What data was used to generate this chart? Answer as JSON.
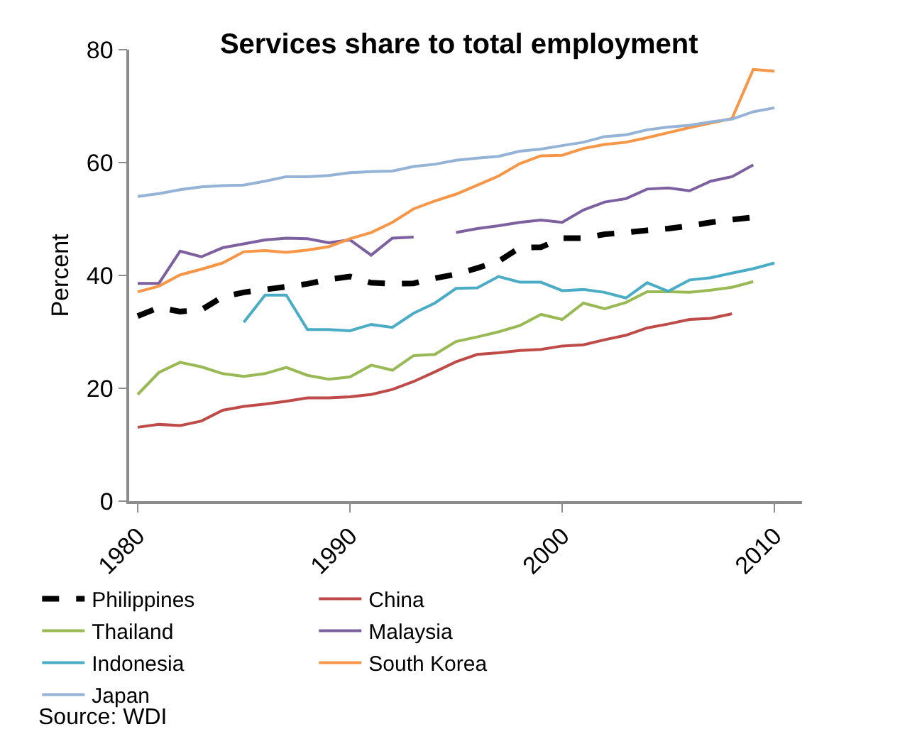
{
  "chart_data": {
    "type": "line",
    "title": "Services share to total employment",
    "ylabel": "Percent",
    "x": [
      1980,
      1981,
      1982,
      1983,
      1984,
      1985,
      1986,
      1987,
      1988,
      1989,
      1990,
      1991,
      1992,
      1993,
      1994,
      1995,
      1996,
      1997,
      1998,
      1999,
      2000,
      2001,
      2002,
      2003,
      2004,
      2005,
      2006,
      2007,
      2008,
      2009,
      2010
    ],
    "xlim": [
      1979.6,
      2011.3
    ],
    "xticks": [
      1980,
      1990,
      2000,
      2010
    ],
    "ylim": [
      0,
      80
    ],
    "yticks": [
      0,
      20,
      40,
      60,
      80
    ],
    "legend": "bottom",
    "marker": "none",
    "series": [
      {
        "name": "Philippines",
        "color": "#000000",
        "line_style": "dashed",
        "values": [
          32.8,
          34.3,
          33.6,
          33.9,
          36.2,
          37.0,
          37.5,
          38.0,
          38.5,
          39.3,
          39.8,
          38.7,
          38.5,
          38.6,
          39.5,
          40.2,
          41.3,
          42.5,
          44.9,
          45.0,
          46.6,
          46.6,
          47.3,
          47.6,
          48.0,
          48.3,
          48.8,
          49.4,
          49.9,
          50.3,
          null
        ]
      },
      {
        "name": "China",
        "color": "#be4b48",
        "values": [
          13.1,
          13.6,
          13.4,
          14.2,
          16.1,
          16.8,
          17.2,
          17.7,
          18.3,
          18.3,
          18.5,
          18.9,
          19.8,
          21.2,
          22.9,
          24.7,
          26.0,
          26.3,
          26.7,
          26.9,
          27.5,
          27.7,
          28.6,
          29.4,
          30.7,
          31.4,
          32.2,
          32.4,
          33.2,
          null,
          null
        ]
      },
      {
        "name": "Thailand",
        "color": "#98b954",
        "values": [
          18.9,
          22.8,
          24.6,
          23.8,
          22.6,
          22.1,
          22.6,
          23.7,
          22.3,
          21.6,
          22.0,
          24.1,
          23.2,
          25.8,
          26.0,
          28.3,
          29.1,
          30.0,
          31.1,
          33.1,
          32.2,
          35.1,
          34.1,
          35.2,
          37.1,
          37.1,
          37.0,
          37.4,
          37.9,
          38.9,
          null
        ]
      },
      {
        "name": "Malaysia",
        "color": "#7d60a0",
        "values": [
          38.6,
          38.6,
          44.3,
          43.3,
          44.9,
          45.6,
          46.3,
          46.6,
          46.5,
          45.8,
          46.3,
          43.6,
          46.6,
          46.8,
          null,
          47.6,
          48.3,
          48.8,
          49.4,
          49.8,
          49.4,
          51.6,
          53.0,
          53.6,
          55.3,
          55.5,
          55.0,
          56.7,
          57.5,
          59.6,
          null
        ]
      },
      {
        "name": "Indonesia",
        "color": "#4bacc6",
        "values": [
          null,
          null,
          null,
          null,
          null,
          31.7,
          36.5,
          36.5,
          30.4,
          30.4,
          30.2,
          31.3,
          30.8,
          33.3,
          35.1,
          37.7,
          37.8,
          39.8,
          38.8,
          38.8,
          37.3,
          37.5,
          37.0,
          36.0,
          38.7,
          37.2,
          39.2,
          39.6,
          40.4,
          41.2,
          42.2
        ]
      },
      {
        "name": "South Korea",
        "color": "#f79646",
        "values": [
          37.1,
          38.1,
          40.1,
          41.1,
          42.2,
          44.2,
          44.4,
          44.1,
          44.5,
          45.1,
          46.5,
          47.6,
          49.4,
          51.8,
          53.2,
          54.4,
          56.0,
          57.6,
          59.8,
          61.2,
          61.3,
          62.5,
          63.2,
          63.6,
          64.4,
          65.3,
          66.2,
          67.0,
          67.8,
          76.5,
          76.2
        ]
      },
      {
        "name": "Japan",
        "color": "#94b3d6",
        "values": [
          54.0,
          54.5,
          55.2,
          55.7,
          55.9,
          56.0,
          56.7,
          57.5,
          57.5,
          57.7,
          58.2,
          58.4,
          58.5,
          59.3,
          59.7,
          60.4,
          60.8,
          61.1,
          62.0,
          62.4,
          63.0,
          63.6,
          64.6,
          64.9,
          65.8,
          66.3,
          66.6,
          67.2,
          67.7,
          69.0,
          69.7
        ]
      }
    ],
    "annotations": [
      "Source: WDI"
    ]
  }
}
